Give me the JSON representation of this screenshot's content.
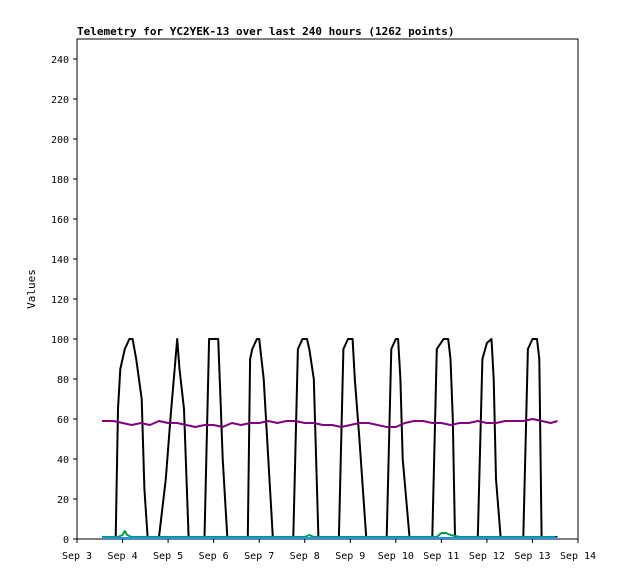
{
  "chart_data": {
    "type": "line",
    "title": "Telemetry for YC2YEK-13 over last 240 hours (1262 points)",
    "ylabel": "Values",
    "xlabel": "",
    "ylim": [
      0,
      250
    ],
    "xlim": [
      "Sep 3",
      "Sep 14"
    ],
    "y_ticks": [
      0,
      20,
      40,
      60,
      80,
      100,
      120,
      140,
      160,
      180,
      200,
      220,
      240
    ],
    "x_ticks": [
      "Sep 3",
      "Sep 4",
      "Sep 5",
      "Sep 6",
      "Sep 7",
      "Sep 8",
      "Sep 9",
      "Sep 10",
      "Sep 11",
      "Sep 12",
      "Sep 13",
      "Sep 14"
    ],
    "grid": false,
    "legend": "none",
    "series": [
      {
        "color": "#000000",
        "x": [
          3.55,
          3.85,
          3.9,
          3.95,
          4.05,
          4.15,
          4.22,
          4.3,
          4.42,
          4.48,
          4.55,
          4.65,
          4.8,
          4.95,
          5.05,
          5.2,
          5.25,
          5.35,
          5.45,
          5.7,
          5.8,
          5.9,
          6.05,
          6.1,
          6.15,
          6.2,
          6.3,
          6.45,
          6.6,
          6.75,
          6.8,
          6.85,
          6.95,
          7.0,
          7.1,
          7.3,
          7.5,
          7.75,
          7.85,
          7.95,
          8.05,
          8.1,
          8.2,
          8.3,
          8.5,
          8.75,
          8.85,
          8.95,
          9.05,
          9.1,
          9.2,
          9.35,
          9.55,
          9.8,
          9.9,
          10.0,
          10.05,
          10.1,
          10.15,
          10.3,
          10.55,
          10.8,
          10.9,
          11.05,
          11.15,
          11.2,
          11.25,
          11.3,
          11.55,
          11.8,
          11.9,
          12.0,
          12.1,
          12.15,
          12.2,
          12.3,
          12.55,
          12.8,
          12.9,
          13.0,
          13.1,
          13.15,
          13.2,
          13.4,
          13.55
        ],
        "y": [
          1,
          1,
          65,
          85,
          95,
          100,
          100,
          90,
          70,
          25,
          1,
          1,
          1,
          30,
          60,
          100,
          85,
          65,
          1,
          1,
          1,
          100,
          100,
          100,
          70,
          40,
          1,
          1,
          1,
          1,
          90,
          95,
          100,
          100,
          80,
          1,
          1,
          1,
          95,
          100,
          100,
          95,
          80,
          1,
          1,
          1,
          95,
          100,
          100,
          80,
          50,
          1,
          1,
          1,
          95,
          100,
          100,
          80,
          40,
          1,
          1,
          1,
          95,
          100,
          100,
          90,
          60,
          1,
          1,
          1,
          90,
          98,
          100,
          80,
          30,
          1,
          1,
          1,
          95,
          100,
          100,
          90,
          1,
          1,
          1
        ]
      },
      {
        "color": "#800080",
        "x": [
          3.55,
          3.8,
          4.0,
          4.2,
          4.4,
          4.6,
          4.8,
          5.0,
          5.2,
          5.4,
          5.6,
          5.8,
          6.0,
          6.2,
          6.4,
          6.6,
          6.8,
          7.0,
          7.2,
          7.4,
          7.6,
          7.8,
          8.0,
          8.2,
          8.4,
          8.6,
          8.8,
          9.0,
          9.2,
          9.4,
          9.6,
          9.8,
          10.0,
          10.2,
          10.4,
          10.6,
          10.8,
          11.0,
          11.2,
          11.4,
          11.6,
          11.8,
          12.0,
          12.2,
          12.4,
          12.6,
          12.8,
          13.0,
          13.2,
          13.4,
          13.55
        ],
        "y": [
          59,
          59,
          58,
          57,
          58,
          57,
          59,
          58,
          58,
          57,
          56,
          57,
          57,
          56,
          58,
          57,
          58,
          58,
          59,
          58,
          59,
          59,
          58,
          58,
          57,
          57,
          56,
          57,
          58,
          58,
          57,
          56,
          56,
          58,
          59,
          59,
          58,
          58,
          57,
          58,
          58,
          59,
          58,
          58,
          59,
          59,
          59,
          60,
          59,
          58,
          59
        ]
      },
      {
        "color": "#00a040",
        "x": [
          3.55,
          3.9,
          4.0,
          4.05,
          4.1,
          4.2,
          4.4,
          5.0,
          5.5,
          6.0,
          6.5,
          7.0,
          7.5,
          8.0,
          8.1,
          8.2,
          8.4,
          9.0,
          9.5,
          10.0,
          10.5,
          10.9,
          11.0,
          11.1,
          11.2,
          11.4,
          12.0,
          12.5,
          13.0,
          13.5
        ],
        "y": [
          1,
          1,
          2,
          4,
          2,
          1,
          1,
          1,
          1,
          1,
          1,
          1,
          1,
          1,
          2,
          1,
          1,
          1,
          1,
          1,
          1,
          1,
          3,
          3,
          2,
          1,
          1,
          1,
          1,
          1
        ]
      },
      {
        "color": "#1e90ff",
        "x": [
          3.55,
          4.5,
          5.5,
          6.5,
          7.5,
          8.5,
          9.5,
          10.5,
          11.5,
          12.5,
          13.55
        ],
        "y": [
          0.5,
          0.5,
          0.5,
          0.5,
          0.5,
          0.5,
          0.5,
          0.5,
          0.5,
          0.5,
          0.5
        ]
      }
    ]
  }
}
